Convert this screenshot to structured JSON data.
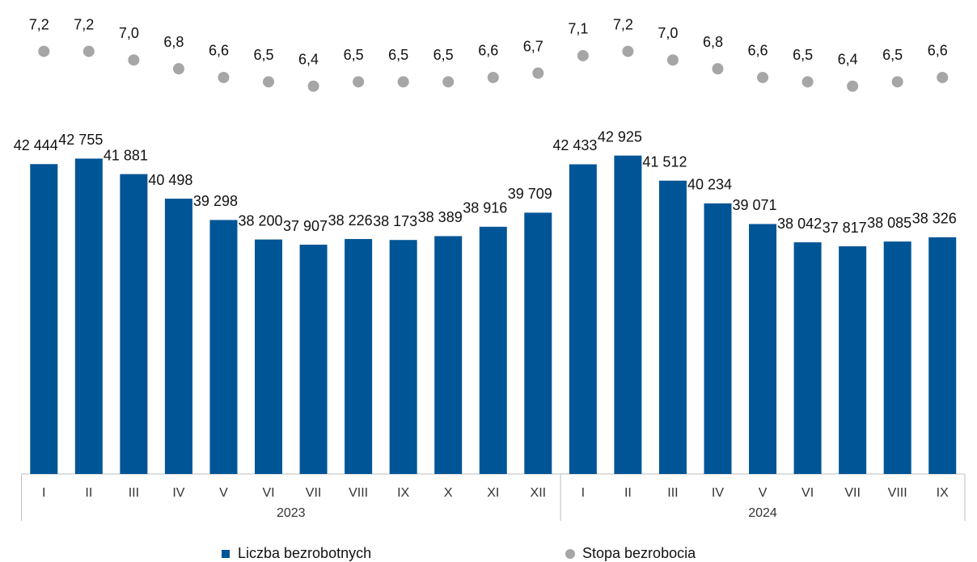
{
  "chart_data": {
    "type": "bar",
    "category_groups": [
      {
        "label": "2023",
        "categories": [
          "I",
          "II",
          "III",
          "IV",
          "V",
          "VI",
          "VII",
          "VIII",
          "IX",
          "X",
          "XI",
          "XII"
        ]
      },
      {
        "label": "2024",
        "categories": [
          "I",
          "II",
          "III",
          "IV",
          "V",
          "VI",
          "VII",
          "VIII",
          "IX"
        ]
      }
    ],
    "series": [
      {
        "name": "Liczba bezrobotnych",
        "type": "bar",
        "color": "#005596",
        "values": [
          42444,
          42755,
          41881,
          40498,
          39298,
          38200,
          37907,
          38226,
          38173,
          38389,
          38916,
          39709,
          42433,
          42925,
          41512,
          40234,
          39071,
          38042,
          37817,
          38085,
          38326
        ],
        "value_labels": [
          "42 444",
          "42 755",
          "41 881",
          "40 498",
          "39 298",
          "38 200",
          "37 907",
          "38 226",
          "38 173",
          "38 389",
          "38 916",
          "39 709",
          "42 433",
          "42 925",
          "41 512",
          "40 234",
          "39 071",
          "38 042",
          "37 817",
          "38 085",
          "38 326"
        ]
      },
      {
        "name": "Stopa bezrobocia",
        "type": "scatter",
        "axis": "y2",
        "color": "#a6a6a6",
        "values": [
          7.2,
          7.2,
          7.0,
          6.8,
          6.6,
          6.5,
          6.4,
          6.5,
          6.5,
          6.5,
          6.6,
          6.7,
          7.1,
          7.2,
          7.0,
          6.8,
          6.6,
          6.5,
          6.4,
          6.5,
          6.6
        ],
        "value_labels": [
          "7,2",
          "7,2",
          "7,0",
          "6,8",
          "6,6",
          "6,5",
          "6,4",
          "6,5",
          "6,5",
          "6,5",
          "6,6",
          "6,7",
          "7,1",
          "7,2",
          "7,0",
          "6,8",
          "6,6",
          "6,5",
          "6,4",
          "6,5",
          "6,6"
        ]
      }
    ],
    "ylim": [
      25000,
      51000
    ],
    "y2lim": [
      -2.5,
      8.1
    ],
    "legend": "bottom"
  }
}
